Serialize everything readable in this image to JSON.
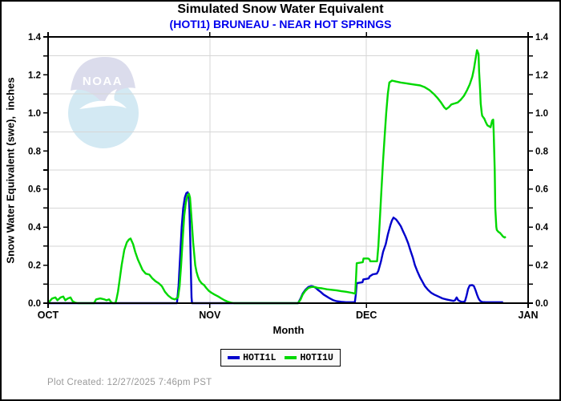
{
  "header": {
    "title": "Simulated Snow Water Equivalent",
    "subtitle": "(HOTI1) BRUNEAU - NEAR HOT SPRINGS",
    "subtitle_color": "#0000ee"
  },
  "watermark": {
    "text": "NOAA"
  },
  "footer": {
    "text": "Plot Created: 12/27/2025 7:46pm PST"
  },
  "chart_data": {
    "type": "line",
    "title": "Simulated Snow Water Equivalent",
    "subtitle": "(HOTI1) BRUNEAU - NEAR HOT SPRINGS",
    "xlabel": "Month",
    "ylabel": "Snow Water Equivalent (swe),  inches",
    "ylim": [
      0,
      1.4
    ],
    "ytick_minor_step": 0.1,
    "ytick_label_step": 0.2,
    "grid": "horizontal lines at odd tenths, vertical lines at month starts",
    "x_unit": "days from Oct 1",
    "xlim": [
      0,
      92
    ],
    "months": [
      {
        "label": "OCT",
        "day": 0
      },
      {
        "label": "NOV",
        "day": 31
      },
      {
        "label": "DEC",
        "day": 61
      },
      {
        "label": "JAN",
        "day": 92
      }
    ],
    "legend": {
      "entries": [
        {
          "label": "HOTI1L",
          "color": "#0000cc"
        },
        {
          "label": "HOTI1U",
          "color": "#00d800"
        }
      ]
    },
    "grid_color": "#d6d6d6",
    "axis_color": "#000000",
    "series": [
      {
        "name": "HOTI1L",
        "color": "#0000cc",
        "points": [
          [
            0,
            0
          ],
          [
            24.7,
            0
          ],
          [
            25.0,
            0.09
          ],
          [
            25.3,
            0.24
          ],
          [
            25.6,
            0.4
          ],
          [
            25.9,
            0.5
          ],
          [
            26.2,
            0.555
          ],
          [
            26.5,
            0.578
          ],
          [
            26.75,
            0.583
          ],
          [
            26.95,
            0.565
          ],
          [
            27.1,
            0.49
          ],
          [
            27.25,
            0.33
          ],
          [
            27.4,
            0.13
          ],
          [
            27.5,
            0.03
          ],
          [
            27.58,
            0
          ],
          [
            47.9,
            0
          ],
          [
            48.4,
            0.025
          ],
          [
            48.8,
            0.05
          ],
          [
            49.3,
            0.07
          ],
          [
            49.9,
            0.085
          ],
          [
            50.4,
            0.09
          ],
          [
            50.8,
            0.088
          ],
          [
            51.3,
            0.08
          ],
          [
            51.7,
            0.07
          ],
          [
            52.2,
            0.06
          ],
          [
            52.8,
            0.045
          ],
          [
            53.4,
            0.035
          ],
          [
            54,
            0.025
          ],
          [
            54.7,
            0.015
          ],
          [
            55.3,
            0.01
          ],
          [
            56.2,
            0.007
          ],
          [
            57.1,
            0.005
          ],
          [
            58,
            0.005
          ],
          [
            58.8,
            0.005
          ],
          [
            59.0,
            0.05
          ],
          [
            59.15,
            0.105
          ],
          [
            60.25,
            0.11
          ],
          [
            60.4,
            0.125
          ],
          [
            61.45,
            0.13
          ],
          [
            61.6,
            0.14
          ],
          [
            62.15,
            0.15
          ],
          [
            62.3,
            0.152
          ],
          [
            63.0,
            0.155
          ],
          [
            63.3,
            0.17
          ],
          [
            63.8,
            0.22
          ],
          [
            64.2,
            0.27
          ],
          [
            64.7,
            0.31
          ],
          [
            65.1,
            0.36
          ],
          [
            65.6,
            0.41
          ],
          [
            65.9,
            0.435
          ],
          [
            66.2,
            0.45
          ],
          [
            66.7,
            0.44
          ],
          [
            67.1,
            0.425
          ],
          [
            67.6,
            0.405
          ],
          [
            68,
            0.38
          ],
          [
            68.5,
            0.35
          ],
          [
            69,
            0.315
          ],
          [
            69.4,
            0.28
          ],
          [
            69.9,
            0.24
          ],
          [
            70.3,
            0.2
          ],
          [
            70.8,
            0.165
          ],
          [
            71.3,
            0.135
          ],
          [
            71.8,
            0.11
          ],
          [
            72.2,
            0.09
          ],
          [
            72.8,
            0.07
          ],
          [
            73.4,
            0.055
          ],
          [
            74,
            0.045
          ],
          [
            74.8,
            0.035
          ],
          [
            75.6,
            0.025
          ],
          [
            76.3,
            0.02
          ],
          [
            77.1,
            0.015
          ],
          [
            77.7,
            0.012
          ],
          [
            78,
            0.015
          ],
          [
            78.3,
            0.03
          ],
          [
            78.6,
            0.015
          ],
          [
            79.1,
            0.008
          ],
          [
            79.5,
            0.006
          ],
          [
            79.9,
            0.01
          ],
          [
            80.2,
            0.04
          ],
          [
            80.5,
            0.075
          ],
          [
            80.8,
            0.093
          ],
          [
            81.3,
            0.095
          ],
          [
            81.6,
            0.09
          ],
          [
            81.9,
            0.07
          ],
          [
            82.2,
            0.045
          ],
          [
            82.5,
            0.025
          ],
          [
            82.8,
            0.012
          ],
          [
            83.2,
            0.006
          ],
          [
            83.9,
            0.005
          ],
          [
            87.2,
            0.005
          ]
        ]
      },
      {
        "name": "HOTI1U",
        "color": "#00d800",
        "points": [
          [
            0,
            0
          ],
          [
            0.3,
            0.01
          ],
          [
            0.8,
            0.025
          ],
          [
            1.4,
            0.03
          ],
          [
            1.8,
            0.015
          ],
          [
            2.4,
            0.03
          ],
          [
            2.9,
            0.035
          ],
          [
            3.3,
            0.015
          ],
          [
            3.8,
            0.025
          ],
          [
            4.3,
            0.03
          ],
          [
            4.7,
            0.01
          ],
          [
            5.2,
            0.003
          ],
          [
            5.7,
            0
          ],
          [
            8.8,
            0
          ],
          [
            9.2,
            0.02
          ],
          [
            10,
            0.025
          ],
          [
            10.8,
            0.02
          ],
          [
            11.2,
            0.015
          ],
          [
            11.7,
            0.02
          ],
          [
            12.1,
            0.005
          ],
          [
            12.4,
            0
          ],
          [
            12.9,
            0
          ],
          [
            13.1,
            0.02
          ],
          [
            13.4,
            0.06
          ],
          [
            13.7,
            0.12
          ],
          [
            14.1,
            0.2
          ],
          [
            14.6,
            0.28
          ],
          [
            15.1,
            0.32
          ],
          [
            15.5,
            0.335
          ],
          [
            15.8,
            0.34
          ],
          [
            16.3,
            0.31
          ],
          [
            16.7,
            0.27
          ],
          [
            17.2,
            0.23
          ],
          [
            17.7,
            0.2
          ],
          [
            18.1,
            0.175
          ],
          [
            18.7,
            0.155
          ],
          [
            19.4,
            0.15
          ],
          [
            20,
            0.13
          ],
          [
            20.6,
            0.115
          ],
          [
            21.2,
            0.105
          ],
          [
            21.8,
            0.09
          ],
          [
            22.4,
            0.06
          ],
          [
            23,
            0.04
          ],
          [
            23.7,
            0.025
          ],
          [
            24.3,
            0.02
          ],
          [
            24.9,
            0.03
          ],
          [
            25.2,
            0.09
          ],
          [
            25.5,
            0.2
          ],
          [
            25.8,
            0.34
          ],
          [
            26.1,
            0.46
          ],
          [
            26.4,
            0.53
          ],
          [
            26.7,
            0.565
          ],
          [
            27.0,
            0.575
          ],
          [
            27.2,
            0.555
          ],
          [
            27.4,
            0.48
          ],
          [
            27.6,
            0.4
          ],
          [
            27.8,
            0.32
          ],
          [
            28.0,
            0.26
          ],
          [
            28.2,
            0.2
          ],
          [
            28.45,
            0.165
          ],
          [
            28.7,
            0.14
          ],
          [
            29.0,
            0.12
          ],
          [
            29.4,
            0.105
          ],
          [
            29.9,
            0.095
          ],
          [
            30.3,
            0.08
          ],
          [
            30.8,
            0.065
          ],
          [
            31.3,
            0.055
          ],
          [
            31.9,
            0.045
          ],
          [
            32.6,
            0.035
          ],
          [
            33.2,
            0.025
          ],
          [
            33.8,
            0.015
          ],
          [
            34.4,
            0.008
          ],
          [
            35,
            0.003
          ],
          [
            35.6,
            0
          ],
          [
            47.9,
            0
          ],
          [
            48.4,
            0.02
          ],
          [
            48.8,
            0.045
          ],
          [
            49.3,
            0.065
          ],
          [
            49.9,
            0.08
          ],
          [
            50.5,
            0.085
          ],
          [
            51.1,
            0.085
          ],
          [
            51.7,
            0.08
          ],
          [
            52.5,
            0.078
          ],
          [
            53.4,
            0.073
          ],
          [
            54.4,
            0.07
          ],
          [
            55.3,
            0.067
          ],
          [
            56.2,
            0.063
          ],
          [
            57.1,
            0.06
          ],
          [
            58.1,
            0.055
          ],
          [
            58.85,
            0.05
          ],
          [
            59.0,
            0.12
          ],
          [
            59.15,
            0.21
          ],
          [
            60.3,
            0.215
          ],
          [
            60.45,
            0.235
          ],
          [
            61.35,
            0.235
          ],
          [
            61.6,
            0.23
          ],
          [
            61.75,
            0.22
          ],
          [
            63.05,
            0.22
          ],
          [
            63.3,
            0.3
          ],
          [
            63.6,
            0.45
          ],
          [
            63.9,
            0.6
          ],
          [
            64.2,
            0.75
          ],
          [
            64.5,
            0.88
          ],
          [
            64.8,
            1.0
          ],
          [
            65.1,
            1.1
          ],
          [
            65.4,
            1.16
          ],
          [
            65.9,
            1.17
          ],
          [
            66.7,
            1.165
          ],
          [
            67.6,
            1.16
          ],
          [
            68.8,
            1.155
          ],
          [
            70,
            1.15
          ],
          [
            71.3,
            1.145
          ],
          [
            72.2,
            1.135
          ],
          [
            73.1,
            1.12
          ],
          [
            73.9,
            1.1
          ],
          [
            74.6,
            1.08
          ],
          [
            75.3,
            1.055
          ],
          [
            75.9,
            1.03
          ],
          [
            76.3,
            1.02
          ],
          [
            76.8,
            1.03
          ],
          [
            77.3,
            1.045
          ],
          [
            77.9,
            1.05
          ],
          [
            78.5,
            1.055
          ],
          [
            79.1,
            1.07
          ],
          [
            79.7,
            1.09
          ],
          [
            80.3,
            1.12
          ],
          [
            80.8,
            1.15
          ],
          [
            81.3,
            1.19
          ],
          [
            81.6,
            1.23
          ],
          [
            81.9,
            1.28
          ],
          [
            82.2,
            1.33
          ],
          [
            82.5,
            1.31
          ],
          [
            82.6,
            1.22
          ],
          [
            82.8,
            1.12
          ],
          [
            82.9,
            1.05
          ],
          [
            83.1,
            1.0
          ],
          [
            83.2,
            0.985
          ],
          [
            83.6,
            0.97
          ],
          [
            83.9,
            0.95
          ],
          [
            84.2,
            0.935
          ],
          [
            84.5,
            0.93
          ],
          [
            84.8,
            0.925
          ],
          [
            85.1,
            0.96
          ],
          [
            85.3,
            0.965
          ],
          [
            85.4,
            0.9
          ],
          [
            85.6,
            0.7
          ],
          [
            85.7,
            0.5
          ],
          [
            85.9,
            0.4
          ],
          [
            86,
            0.385
          ],
          [
            86.3,
            0.375
          ],
          [
            86.6,
            0.37
          ],
          [
            86.9,
            0.36
          ],
          [
            87.2,
            0.35
          ],
          [
            87.5,
            0.345
          ],
          [
            87.7,
            0.35
          ]
        ]
      }
    ]
  }
}
